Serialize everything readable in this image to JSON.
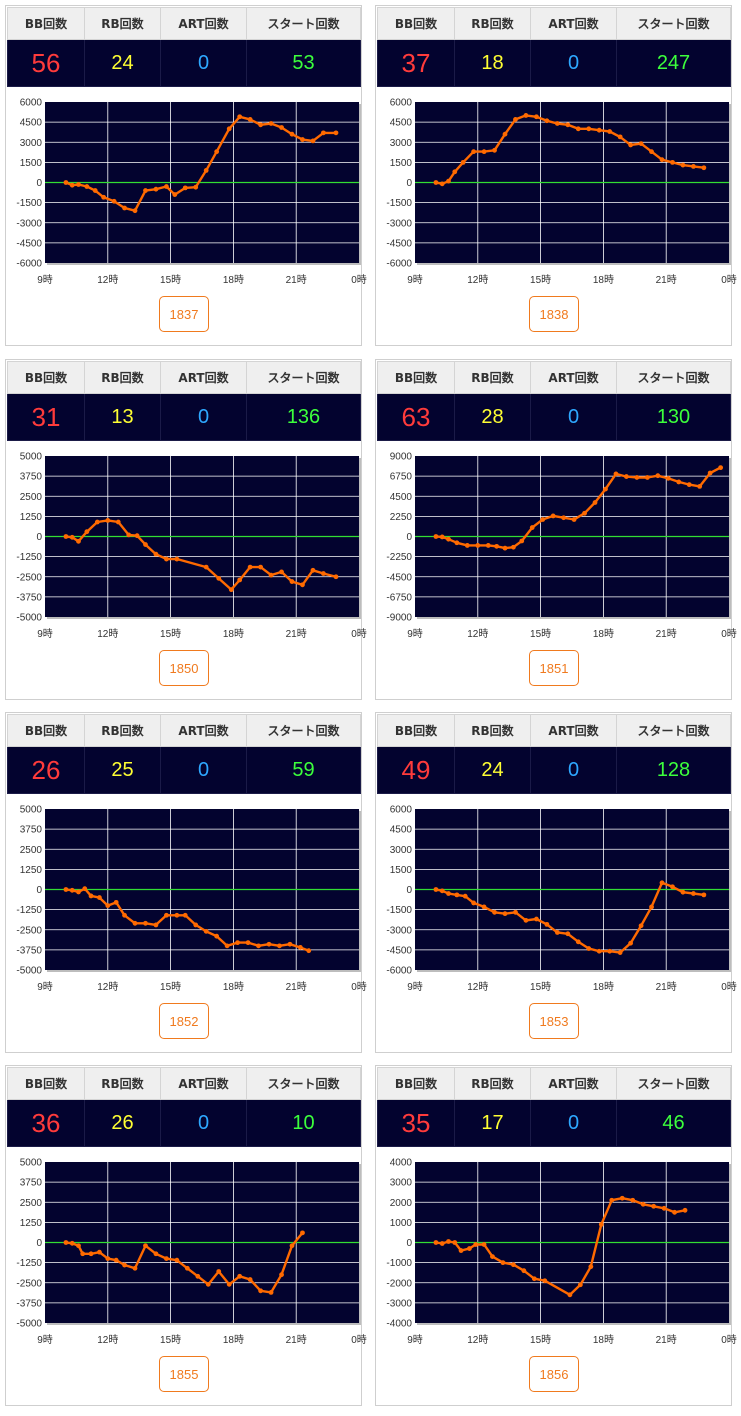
{
  "labels": {
    "bb": "BB回数",
    "rb": "RB回数",
    "art": "ART回数",
    "start": "スタート回数"
  },
  "x_ticks": [
    "9時",
    "12時",
    "15時",
    "18時",
    "21時",
    "0時"
  ],
  "colors": {
    "plot_bg": "#03032f",
    "line": "#ff6a00",
    "marker": "#ff6a00",
    "zero": "#33dd33",
    "grid": "#ffffff"
  },
  "machines": [
    {
      "number": "1837",
      "bb": "56",
      "rb": "24",
      "art": "0",
      "start": "53",
      "chart_data": {
        "type": "line",
        "xlabel": "",
        "ylabel": "",
        "ylim": [
          -6000,
          6000
        ],
        "yticks": [
          6000,
          4500,
          3000,
          1500,
          0,
          -1500,
          -3000,
          -4500,
          -6000
        ],
        "points": [
          [
            10.0,
            0
          ],
          [
            10.3,
            -200
          ],
          [
            10.6,
            -150
          ],
          [
            11.0,
            -300
          ],
          [
            11.4,
            -600
          ],
          [
            11.8,
            -1100
          ],
          [
            12.3,
            -1400
          ],
          [
            12.8,
            -1900
          ],
          [
            13.3,
            -2100
          ],
          [
            13.8,
            -600
          ],
          [
            14.3,
            -500
          ],
          [
            14.8,
            -300
          ],
          [
            15.2,
            -900
          ],
          [
            15.7,
            -400
          ],
          [
            16.2,
            -350
          ],
          [
            16.7,
            900
          ],
          [
            17.2,
            2300
          ],
          [
            17.8,
            4000
          ],
          [
            18.3,
            4900
          ],
          [
            18.8,
            4700
          ],
          [
            19.3,
            4300
          ],
          [
            19.8,
            4400
          ],
          [
            20.3,
            4100
          ],
          [
            20.8,
            3600
          ],
          [
            21.3,
            3200
          ],
          [
            21.8,
            3100
          ],
          [
            22.3,
            3700
          ],
          [
            22.9,
            3700
          ]
        ]
      }
    },
    {
      "number": "1838",
      "bb": "37",
      "rb": "18",
      "art": "0",
      "start": "247",
      "chart_data": {
        "type": "line",
        "xlabel": "",
        "ylabel": "",
        "ylim": [
          -6000,
          6000
        ],
        "yticks": [
          6000,
          4500,
          3000,
          1500,
          0,
          -1500,
          -3000,
          -4500,
          -6000
        ],
        "points": [
          [
            10.0,
            0
          ],
          [
            10.3,
            -100
          ],
          [
            10.6,
            100
          ],
          [
            10.9,
            800
          ],
          [
            11.3,
            1500
          ],
          [
            11.8,
            2300
          ],
          [
            12.3,
            2300
          ],
          [
            12.8,
            2400
          ],
          [
            13.3,
            3600
          ],
          [
            13.8,
            4700
          ],
          [
            14.3,
            5000
          ],
          [
            14.8,
            4900
          ],
          [
            15.3,
            4600
          ],
          [
            15.8,
            4400
          ],
          [
            16.3,
            4300
          ],
          [
            16.8,
            4000
          ],
          [
            17.3,
            4000
          ],
          [
            17.8,
            3900
          ],
          [
            18.3,
            3800
          ],
          [
            18.8,
            3400
          ],
          [
            19.3,
            2800
          ],
          [
            19.8,
            2900
          ],
          [
            20.3,
            2300
          ],
          [
            20.8,
            1700
          ],
          [
            21.3,
            1500
          ],
          [
            21.8,
            1300
          ],
          [
            22.3,
            1200
          ],
          [
            22.8,
            1100
          ]
        ]
      }
    },
    {
      "number": "1850",
      "bb": "31",
      "rb": "13",
      "art": "0",
      "start": "136",
      "chart_data": {
        "type": "line",
        "xlabel": "",
        "ylabel": "",
        "ylim": [
          -5000,
          5000
        ],
        "yticks": [
          5000,
          3750,
          2500,
          1250,
          0,
          -1250,
          -2500,
          -3750,
          -5000
        ],
        "points": [
          [
            10.0,
            0
          ],
          [
            10.3,
            -50
          ],
          [
            10.6,
            -300
          ],
          [
            11.0,
            300
          ],
          [
            11.5,
            900
          ],
          [
            12.0,
            1000
          ],
          [
            12.5,
            900
          ],
          [
            13.0,
            100
          ],
          [
            13.4,
            50
          ],
          [
            13.8,
            -500
          ],
          [
            14.3,
            -1100
          ],
          [
            14.8,
            -1400
          ],
          [
            15.3,
            -1400
          ],
          [
            16.7,
            -1900
          ],
          [
            17.3,
            -2600
          ],
          [
            17.9,
            -3300
          ],
          [
            18.3,
            -2700
          ],
          [
            18.8,
            -1900
          ],
          [
            19.3,
            -1900
          ],
          [
            19.8,
            -2400
          ],
          [
            20.3,
            -2200
          ],
          [
            20.8,
            -2800
          ],
          [
            21.3,
            -3000
          ],
          [
            21.8,
            -2100
          ],
          [
            22.3,
            -2300
          ],
          [
            22.9,
            -2500
          ]
        ]
      }
    },
    {
      "number": "1851",
      "bb": "63",
      "rb": "28",
      "art": "0",
      "start": "130",
      "chart_data": {
        "type": "line",
        "xlabel": "",
        "ylabel": "",
        "ylim": [
          -9000,
          9000
        ],
        "yticks": [
          9000,
          6750,
          4500,
          2250,
          0,
          -2250,
          -4500,
          -6750,
          -9000
        ],
        "points": [
          [
            10.0,
            0
          ],
          [
            10.3,
            -50
          ],
          [
            10.6,
            -300
          ],
          [
            11.0,
            -700
          ],
          [
            11.5,
            -1000
          ],
          [
            12.0,
            -1000
          ],
          [
            12.5,
            -1000
          ],
          [
            12.9,
            -1100
          ],
          [
            13.3,
            -1300
          ],
          [
            13.7,
            -1200
          ],
          [
            14.1,
            -500
          ],
          [
            14.6,
            1000
          ],
          [
            15.1,
            1900
          ],
          [
            15.6,
            2300
          ],
          [
            16.1,
            2100
          ],
          [
            16.6,
            1900
          ],
          [
            17.1,
            2600
          ],
          [
            17.6,
            3800
          ],
          [
            18.1,
            5300
          ],
          [
            18.6,
            7000
          ],
          [
            19.1,
            6700
          ],
          [
            19.6,
            6600
          ],
          [
            20.1,
            6600
          ],
          [
            20.6,
            6800
          ],
          [
            21.1,
            6500
          ],
          [
            21.6,
            6100
          ],
          [
            22.1,
            5800
          ],
          [
            22.6,
            5600
          ],
          [
            23.1,
            7100
          ],
          [
            23.6,
            7700
          ]
        ]
      }
    },
    {
      "number": "1852",
      "bb": "26",
      "rb": "25",
      "art": "0",
      "start": "59",
      "chart_data": {
        "type": "line",
        "xlabel": "",
        "ylabel": "",
        "ylim": [
          -5000,
          5000
        ],
        "yticks": [
          5000,
          3750,
          2500,
          1250,
          0,
          -1250,
          -2500,
          -3750,
          -5000
        ],
        "points": [
          [
            10.0,
            0
          ],
          [
            10.3,
            -50
          ],
          [
            10.6,
            -150
          ],
          [
            10.9,
            50
          ],
          [
            11.2,
            -400
          ],
          [
            11.6,
            -500
          ],
          [
            12.0,
            -1000
          ],
          [
            12.4,
            -800
          ],
          [
            12.8,
            -1600
          ],
          [
            13.3,
            -2100
          ],
          [
            13.8,
            -2100
          ],
          [
            14.3,
            -2200
          ],
          [
            14.8,
            -1600
          ],
          [
            15.3,
            -1600
          ],
          [
            15.7,
            -1600
          ],
          [
            16.2,
            -2200
          ],
          [
            16.7,
            -2600
          ],
          [
            17.2,
            -2900
          ],
          [
            17.7,
            -3500
          ],
          [
            18.2,
            -3300
          ],
          [
            18.7,
            -3300
          ],
          [
            19.2,
            -3500
          ],
          [
            19.7,
            -3400
          ],
          [
            20.2,
            -3500
          ],
          [
            20.7,
            -3400
          ],
          [
            21.2,
            -3600
          ],
          [
            21.6,
            -3800
          ]
        ]
      }
    },
    {
      "number": "1853",
      "bb": "49",
      "rb": "24",
      "art": "0",
      "start": "128",
      "chart_data": {
        "type": "line",
        "xlabel": "",
        "ylabel": "",
        "ylim": [
          -6000,
          6000
        ],
        "yticks": [
          6000,
          4500,
          3000,
          1500,
          0,
          -1500,
          -3000,
          -4500,
          -6000
        ],
        "points": [
          [
            10.0,
            0
          ],
          [
            10.3,
            -100
          ],
          [
            10.6,
            -300
          ],
          [
            11.0,
            -400
          ],
          [
            11.4,
            -500
          ],
          [
            11.8,
            -1000
          ],
          [
            12.3,
            -1300
          ],
          [
            12.8,
            -1700
          ],
          [
            13.3,
            -1800
          ],
          [
            13.8,
            -1700
          ],
          [
            14.3,
            -2300
          ],
          [
            14.8,
            -2200
          ],
          [
            15.3,
            -2600
          ],
          [
            15.8,
            -3200
          ],
          [
            16.3,
            -3300
          ],
          [
            16.8,
            -3900
          ],
          [
            17.3,
            -4400
          ],
          [
            17.8,
            -4600
          ],
          [
            18.3,
            -4600
          ],
          [
            18.8,
            -4700
          ],
          [
            19.3,
            -4000
          ],
          [
            19.8,
            -2700
          ],
          [
            20.3,
            -1300
          ],
          [
            20.8,
            500
          ],
          [
            21.3,
            200
          ],
          [
            21.8,
            -200
          ],
          [
            22.3,
            -300
          ],
          [
            22.8,
            -400
          ]
        ]
      }
    },
    {
      "number": "1855",
      "bb": "36",
      "rb": "26",
      "art": "0",
      "start": "10",
      "chart_data": {
        "type": "line",
        "xlabel": "",
        "ylabel": "",
        "ylim": [
          -5000,
          5000
        ],
        "yticks": [
          5000,
          3750,
          2500,
          1250,
          0,
          -1250,
          -2500,
          -3750,
          -5000
        ],
        "points": [
          [
            10.0,
            0
          ],
          [
            10.3,
            -50
          ],
          [
            10.6,
            -200
          ],
          [
            10.8,
            -700
          ],
          [
            11.2,
            -700
          ],
          [
            11.6,
            -600
          ],
          [
            12.0,
            -1000
          ],
          [
            12.4,
            -1100
          ],
          [
            12.8,
            -1400
          ],
          [
            13.3,
            -1600
          ],
          [
            13.8,
            -200
          ],
          [
            14.3,
            -700
          ],
          [
            14.8,
            -1000
          ],
          [
            15.3,
            -1100
          ],
          [
            15.8,
            -1600
          ],
          [
            16.3,
            -2100
          ],
          [
            16.8,
            -2600
          ],
          [
            17.3,
            -1800
          ],
          [
            17.8,
            -2600
          ],
          [
            18.3,
            -2100
          ],
          [
            18.8,
            -2300
          ],
          [
            19.3,
            -3000
          ],
          [
            19.8,
            -3100
          ],
          [
            20.3,
            -2000
          ],
          [
            20.8,
            -200
          ],
          [
            21.3,
            600
          ]
        ]
      }
    },
    {
      "number": "1856",
      "bb": "35",
      "rb": "17",
      "art": "0",
      "start": "46",
      "chart_data": {
        "type": "line",
        "xlabel": "",
        "ylabel": "",
        "ylim": [
          -4000,
          4000
        ],
        "yticks": [
          4000,
          3000,
          2000,
          1000,
          0,
          -1000,
          -2000,
          -3000,
          -4000
        ],
        "points": [
          [
            10.0,
            0
          ],
          [
            10.3,
            -50
          ],
          [
            10.6,
            50
          ],
          [
            10.9,
            0
          ],
          [
            11.2,
            -400
          ],
          [
            11.6,
            -300
          ],
          [
            11.9,
            -100
          ],
          [
            12.3,
            -100
          ],
          [
            12.7,
            -700
          ],
          [
            13.2,
            -1000
          ],
          [
            13.7,
            -1100
          ],
          [
            14.2,
            -1400
          ],
          [
            14.7,
            -1800
          ],
          [
            15.2,
            -1900
          ],
          [
            16.4,
            -2600
          ],
          [
            16.9,
            -2100
          ],
          [
            17.4,
            -1200
          ],
          [
            17.9,
            900
          ],
          [
            18.4,
            2100
          ],
          [
            18.9,
            2200
          ],
          [
            19.4,
            2100
          ],
          [
            19.9,
            1900
          ],
          [
            20.4,
            1800
          ],
          [
            20.9,
            1700
          ],
          [
            21.4,
            1500
          ],
          [
            21.9,
            1600
          ]
        ]
      }
    }
  ]
}
